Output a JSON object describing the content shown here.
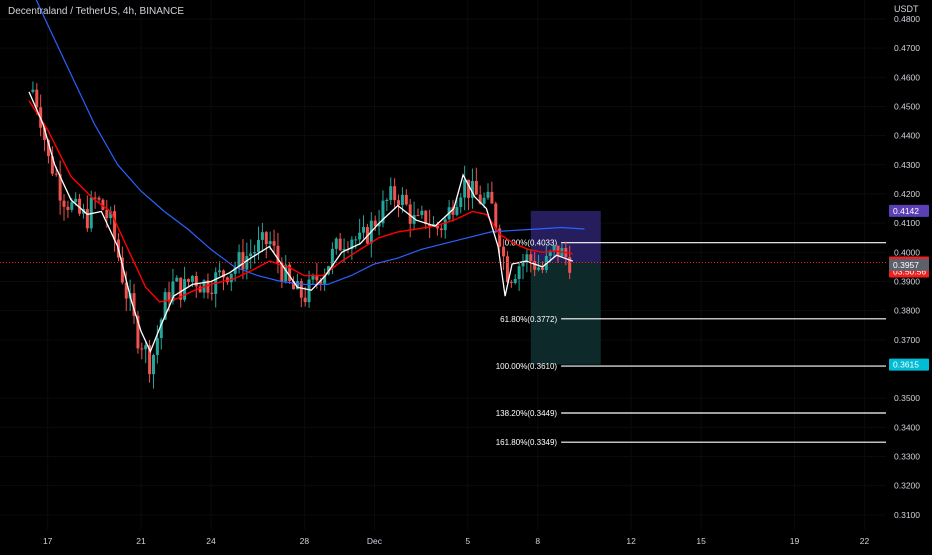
{
  "header": {
    "title": "Decentraland / TetherUS, 4h, BINANCE",
    "currency": "USDT"
  },
  "colors": {
    "up": "#26a69a",
    "down": "#ef5350",
    "ema_fast": "#ffffff",
    "ema_mid": "#ff0000",
    "ema_slow": "#2962ff",
    "fib": "#ffffff",
    "grid": "#0b0b0b",
    "text": "#d1d4dc"
  },
  "chart_data": {
    "type": "candlestick",
    "ylim": [
      0.3048,
      0.4865
    ],
    "y_ticks": [
      "0.4800",
      "0.4700",
      "0.4600",
      "0.4500",
      "0.4400",
      "0.4300",
      "0.4200",
      "0.4100",
      "0.4000",
      "0.3900",
      "0.3800",
      "0.3700",
      "0.3500",
      "0.3400",
      "0.3300",
      "0.3200",
      "0.3100"
    ],
    "x_ticks": [
      {
        "label": "17",
        "day": 17
      },
      {
        "label": "21",
        "day": 21
      },
      {
        "label": "24",
        "day": 24
      },
      {
        "label": "28",
        "day": 28
      },
      {
        "label": "Dec",
        "day": 31
      },
      {
        "label": "5",
        "day": 35
      },
      {
        "label": "8",
        "day": 38
      },
      {
        "label": "12",
        "day": 42
      },
      {
        "label": "15",
        "day": 45
      },
      {
        "label": "19",
        "day": 49
      },
      {
        "label": "22",
        "day": 52
      }
    ],
    "candle_days": [
      16.2,
      39.5
    ],
    "price_path": [
      [
        16.2,
        0.455
      ],
      [
        16.4,
        0.456
      ],
      [
        16.6,
        0.45
      ],
      [
        16.8,
        0.443
      ],
      [
        17.0,
        0.432
      ],
      [
        17.3,
        0.428
      ],
      [
        17.6,
        0.42
      ],
      [
        18.0,
        0.416
      ],
      [
        18.3,
        0.413
      ],
      [
        18.7,
        0.412
      ],
      [
        19.0,
        0.418
      ],
      [
        19.3,
        0.416
      ],
      [
        19.7,
        0.41
      ],
      [
        20.0,
        0.4
      ],
      [
        20.3,
        0.388
      ],
      [
        20.6,
        0.38
      ],
      [
        20.8,
        0.372
      ],
      [
        21.0,
        0.37
      ],
      [
        21.2,
        0.366
      ],
      [
        21.4,
        0.362
      ],
      [
        21.6,
        0.367
      ],
      [
        21.8,
        0.375
      ],
      [
        22.1,
        0.385
      ],
      [
        22.4,
        0.389
      ],
      [
        22.8,
        0.387
      ],
      [
        23.2,
        0.392
      ],
      [
        23.6,
        0.389
      ],
      [
        24.0,
        0.39
      ],
      [
        24.4,
        0.392
      ],
      [
        24.8,
        0.394
      ],
      [
        25.3,
        0.397
      ],
      [
        25.7,
        0.4
      ],
      [
        26.1,
        0.402
      ],
      [
        26.5,
        0.404
      ],
      [
        26.8,
        0.398
      ],
      [
        27.1,
        0.393
      ],
      [
        27.4,
        0.388
      ],
      [
        27.7,
        0.386
      ],
      [
        28.0,
        0.385
      ],
      [
        28.3,
        0.388
      ],
      [
        28.6,
        0.392
      ],
      [
        28.9,
        0.395
      ],
      [
        29.2,
        0.399
      ],
      [
        29.6,
        0.404
      ],
      [
        30.0,
        0.406
      ],
      [
        30.4,
        0.403
      ],
      [
        30.8,
        0.408
      ],
      [
        31.2,
        0.413
      ],
      [
        31.6,
        0.418
      ],
      [
        32.0,
        0.42
      ],
      [
        32.4,
        0.415
      ],
      [
        32.8,
        0.409
      ],
      [
        33.2,
        0.412
      ],
      [
        33.6,
        0.408
      ],
      [
        34.0,
        0.41
      ],
      [
        34.4,
        0.418
      ],
      [
        34.8,
        0.424
      ],
      [
        35.2,
        0.42
      ],
      [
        35.6,
        0.418
      ],
      [
        36.0,
        0.416
      ],
      [
        36.4,
        0.405
      ],
      [
        36.6,
        0.395
      ],
      [
        36.8,
        0.392
      ],
      [
        37.0,
        0.394
      ],
      [
        37.3,
        0.397
      ],
      [
        37.6,
        0.398
      ],
      [
        37.9,
        0.396
      ],
      [
        38.2,
        0.394
      ],
      [
        38.5,
        0.398
      ],
      [
        38.8,
        0.401
      ],
      [
        39.1,
        0.399
      ],
      [
        39.5,
        0.3965
      ]
    ],
    "overlay_paths": {
      "ema_fast": [
        [
          16.2,
          0.455
        ],
        [
          16.8,
          0.444
        ],
        [
          17.3,
          0.43
        ],
        [
          18.0,
          0.418
        ],
        [
          18.7,
          0.413
        ],
        [
          19.3,
          0.414
        ],
        [
          20.0,
          0.402
        ],
        [
          20.6,
          0.383
        ],
        [
          21.0,
          0.373
        ],
        [
          21.4,
          0.366
        ],
        [
          21.8,
          0.374
        ],
        [
          22.4,
          0.385
        ],
        [
          23.2,
          0.389
        ],
        [
          24.0,
          0.39
        ],
        [
          24.8,
          0.393
        ],
        [
          25.7,
          0.398
        ],
        [
          26.5,
          0.402
        ],
        [
          27.1,
          0.395
        ],
        [
          27.7,
          0.388
        ],
        [
          28.3,
          0.387
        ],
        [
          28.9,
          0.392
        ],
        [
          29.6,
          0.4
        ],
        [
          30.4,
          0.403
        ],
        [
          31.2,
          0.41
        ],
        [
          32.0,
          0.416
        ],
        [
          32.8,
          0.411
        ],
        [
          33.6,
          0.409
        ],
        [
          34.4,
          0.415
        ],
        [
          34.8,
          0.4265
        ],
        [
          35.3,
          0.419
        ],
        [
          35.8,
          0.415
        ],
        [
          36.3,
          0.402
        ],
        [
          36.6,
          0.385
        ],
        [
          36.9,
          0.396
        ],
        [
          37.5,
          0.397
        ],
        [
          38.2,
          0.395
        ],
        [
          38.8,
          0.399
        ],
        [
          39.5,
          0.397
        ]
      ],
      "ema_mid": [
        [
          16.2,
          0.452
        ],
        [
          17.0,
          0.442
        ],
        [
          18.0,
          0.426
        ],
        [
          19.0,
          0.418
        ],
        [
          19.7,
          0.414
        ],
        [
          20.5,
          0.4
        ],
        [
          21.2,
          0.388
        ],
        [
          21.8,
          0.383
        ],
        [
          22.5,
          0.384
        ],
        [
          23.3,
          0.387
        ],
        [
          24.0,
          0.389
        ],
        [
          25.0,
          0.391
        ],
        [
          25.8,
          0.394
        ],
        [
          26.5,
          0.397
        ],
        [
          27.3,
          0.395
        ],
        [
          28.0,
          0.392
        ],
        [
          28.8,
          0.392
        ],
        [
          29.6,
          0.397
        ],
        [
          30.4,
          0.401
        ],
        [
          31.2,
          0.405
        ],
        [
          32.0,
          0.407
        ],
        [
          32.8,
          0.408
        ],
        [
          33.6,
          0.409
        ],
        [
          34.4,
          0.411
        ],
        [
          35.2,
          0.414
        ],
        [
          35.8,
          0.413
        ],
        [
          36.4,
          0.406
        ],
        [
          37.0,
          0.403
        ],
        [
          37.6,
          0.401
        ],
        [
          38.2,
          0.4
        ],
        [
          38.8,
          0.4005
        ],
        [
          39.5,
          0.3995
        ]
      ],
      "ema_slow": [
        [
          16.2,
          0.492
        ],
        [
          17.0,
          0.478
        ],
        [
          18.0,
          0.461
        ],
        [
          19.0,
          0.444
        ],
        [
          20.0,
          0.43
        ],
        [
          21.0,
          0.421
        ],
        [
          22.0,
          0.414
        ],
        [
          23.0,
          0.408
        ],
        [
          24.0,
          0.401
        ],
        [
          25.0,
          0.395
        ],
        [
          26.0,
          0.392
        ],
        [
          27.0,
          0.39
        ],
        [
          28.0,
          0.389
        ],
        [
          29.0,
          0.389
        ],
        [
          30.0,
          0.392
        ],
        [
          31.0,
          0.396
        ],
        [
          32.0,
          0.398
        ],
        [
          33.0,
          0.401
        ],
        [
          34.0,
          0.403
        ],
        [
          35.0,
          0.405
        ],
        [
          36.0,
          0.407
        ],
        [
          37.0,
          0.4075
        ],
        [
          38.0,
          0.408
        ],
        [
          39.0,
          0.4085
        ],
        [
          40.0,
          0.408
        ]
      ]
    },
    "fib_levels": [
      {
        "label": "0.00%(0.4033)",
        "value": 0.4033
      },
      {
        "label": "61.80%(0.3772)",
        "value": 0.3772
      },
      {
        "label": "100.00%(0.3610)",
        "value": 0.361
      },
      {
        "label": "138.20%(0.3449)",
        "value": 0.3449
      },
      {
        "label": "161.80%(0.3349)",
        "value": 0.3349
      }
    ],
    "fib_start_day": 39.0,
    "position_box": {
      "start_day": 37.7,
      "end_day": 40.7,
      "target": 0.4142,
      "entry": 0.3965,
      "stop": 0.3615,
      "profit_color": "#2a2066",
      "loss_color": "#0e2b2b"
    },
    "price_tags": [
      {
        "label": "0.4142",
        "value": 0.4142,
        "color": "#5b3fb5"
      },
      {
        "label": "0.3965",
        "value": 0.3965,
        "color": "#ef2020",
        "sub": "03:50:56"
      },
      {
        "label": "0.3957",
        "value": 0.3957,
        "color": "#5d606b"
      },
      {
        "label": "0.3615",
        "value": 0.3615,
        "color": "#00bcd4"
      }
    ],
    "last_price": 0.3965,
    "last_price_line_color": "#ef2020"
  }
}
